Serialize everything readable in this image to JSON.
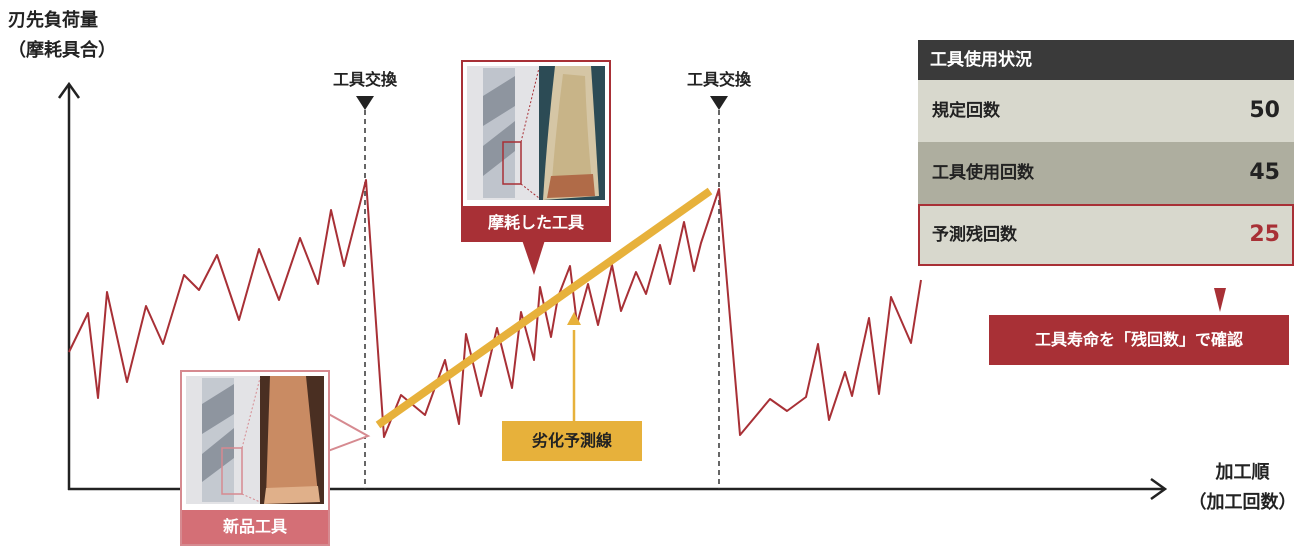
{
  "axes": {
    "y_label_line1": "刃先負荷量",
    "y_label_line2": "（摩耗具合）",
    "x_label_line1": "加工順",
    "x_label_line2": "（加工回数）"
  },
  "markers": {
    "exchange_1": "工具交換",
    "exchange_2": "工具交換"
  },
  "images": {
    "new_tool_caption": "新品工具",
    "worn_tool_caption": "摩耗した工具"
  },
  "prediction_line_label": "劣化予測線",
  "status_panel": {
    "title": "工具使用状況",
    "rows": [
      {
        "label": "規定回数",
        "value": "50"
      },
      {
        "label": "工具使用回数",
        "value": "45"
      },
      {
        "label": "予測残回数",
        "value": "25"
      }
    ]
  },
  "callout": "工具寿命を「残回数」で確認",
  "colors": {
    "accent_red": "#a83036",
    "pale_red": "#d68a90",
    "prediction_yellow": "#e7b13b",
    "panel_dark": "#3a3a3a",
    "panel_light": "#d8d8cd",
    "panel_mid": "#aeae9f"
  }
}
